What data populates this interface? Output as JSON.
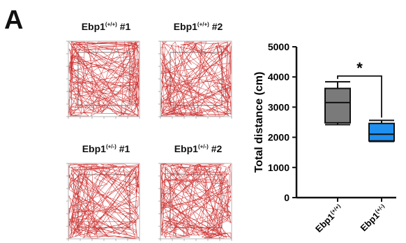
{
  "panel": {
    "letter": "A"
  },
  "tiles": [
    {
      "name": "Ebp1",
      "sup": "(+/+)",
      "rep": "#1"
    },
    {
      "name": "Ebp1",
      "sup": "(+/+)",
      "rep": "#2"
    },
    {
      "name": "Ebp1",
      "sup": "(+/-)",
      "rep": "#1"
    },
    {
      "name": "Ebp1",
      "sup": "(+/-)",
      "rep": "#2"
    }
  ],
  "chart_data": {
    "type": "boxplot",
    "ylabel": "Total distance (cm)",
    "ylim": [
      0,
      5000
    ],
    "yticks": [
      0,
      1000,
      2000,
      3000,
      4000,
      5000
    ],
    "categories": [
      "Ebp1(+/+)",
      "Ebp1(+/-)"
    ],
    "category_labels": [
      {
        "name": "Ebp1",
        "sup": "(+/+)"
      },
      {
        "name": "Ebp1",
        "sup": "(+/-)"
      }
    ],
    "series": [
      {
        "category": "Ebp1(+/+)",
        "min": 2420,
        "q1": 2480,
        "median": 3150,
        "q3": 3620,
        "max": 3840,
        "color": "#7a7a7a"
      },
      {
        "category": "Ebp1(+/-)",
        "min": 1860,
        "q1": 1880,
        "median": 2100,
        "q3": 2460,
        "max": 2560,
        "color": "#1f8ff0"
      }
    ],
    "significance": {
      "label": "*",
      "y": 4030
    }
  }
}
